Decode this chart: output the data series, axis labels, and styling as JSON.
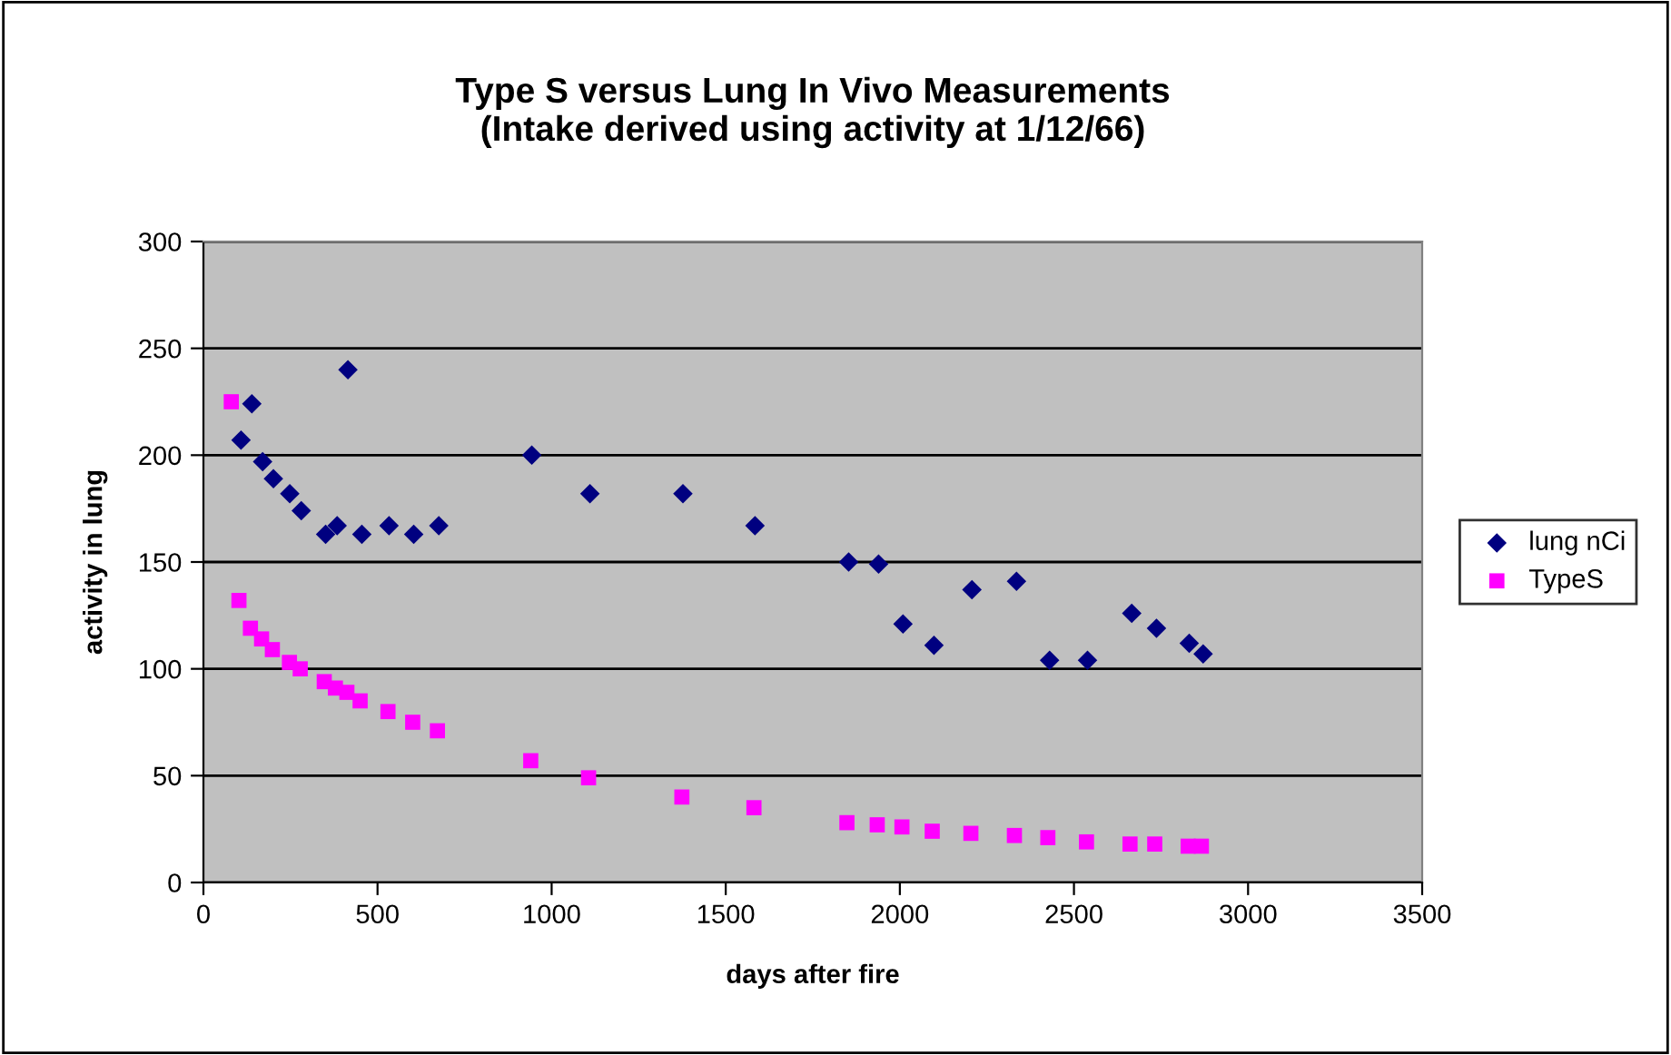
{
  "chart_data": {
    "type": "scatter",
    "title": "Type S versus Lung In Vivo Measurements\n(Intake derived using activity at 1/12/66)",
    "xlabel": "days after fire",
    "ylabel": "activity in lung",
    "xlim": [
      0,
      3500
    ],
    "xticks": [
      0,
      500,
      1000,
      1500,
      2000,
      2500,
      3000,
      3500
    ],
    "ylim": [
      0,
      300
    ],
    "yticks": [
      0,
      50,
      100,
      150,
      200,
      250,
      300
    ],
    "grid": "y",
    "legend": "right",
    "series": [
      {
        "name": "lung nCi",
        "color": "#000080",
        "marker": "diamond",
        "x": [
          108,
          139,
          170,
          201,
          248,
          281,
          351,
          384,
          415,
          455,
          533,
          604,
          676,
          943,
          1110,
          1377,
          1584,
          1853,
          1939,
          2009,
          2098,
          2207,
          2335,
          2430,
          2539,
          2666,
          2737,
          2831,
          2871
        ],
        "values": [
          207,
          224,
          197,
          189,
          182,
          174,
          163,
          167,
          240,
          163,
          167,
          163,
          167,
          200,
          182,
          182,
          167,
          150,
          149,
          121,
          111,
          137,
          141,
          104,
          104,
          126,
          119,
          112,
          107
        ]
      },
      {
        "name": "TypeS",
        "color": "#ff00ff",
        "marker": "square",
        "x": [
          80,
          102,
          135,
          167,
          198,
          247,
          278,
          347,
          379,
          412,
          450,
          530,
          601,
          672,
          940,
          1106,
          1374,
          1581,
          1848,
          1935,
          2006,
          2093,
          2204,
          2329,
          2425,
          2536,
          2661,
          2732,
          2828,
          2866
        ],
        "values": [
          225,
          132,
          119,
          114,
          109,
          103,
          100,
          94,
          91,
          89,
          85,
          80,
          75,
          71,
          57,
          49,
          40,
          35,
          28,
          27,
          26,
          24,
          23,
          22,
          21,
          19,
          18,
          18,
          17,
          17
        ]
      }
    ]
  }
}
